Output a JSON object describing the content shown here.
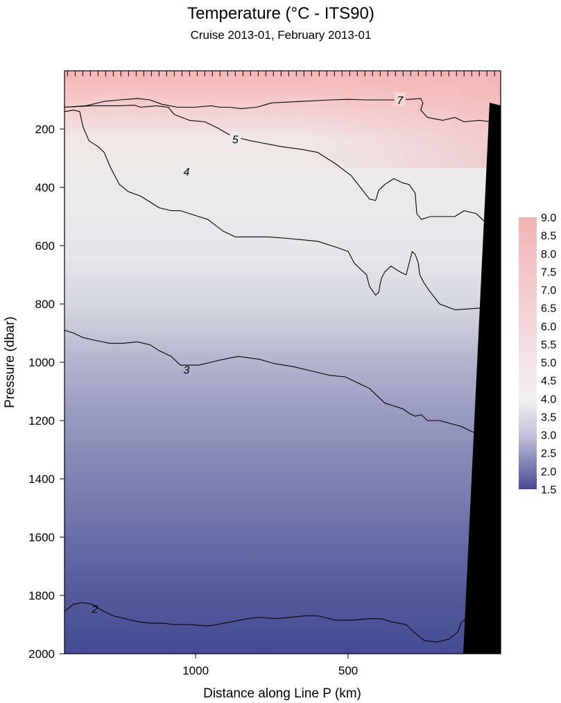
{
  "chart_data": {
    "type": "heatmap",
    "title": "Temperature  (°C - ITS90)",
    "subtitle": "Cruise 2013-01,  February 2013-01",
    "xlabel": "Distance along Line P  (km)",
    "ylabel": "Pressure  (dbar)",
    "x_axis": {
      "range": [
        1430,
        0
      ],
      "reversed": true,
      "ticks": [
        1000,
        500
      ],
      "tick_labels": [
        "1000",
        "500"
      ]
    },
    "y_axis": {
      "range": [
        0,
        2000
      ],
      "reversed": true,
      "ticks": [
        200,
        400,
        600,
        800,
        1000,
        1200,
        1400,
        1600,
        1800,
        2000
      ],
      "tick_labels": [
        "200",
        "400",
        "600",
        "800",
        "1000",
        "1200",
        "1400",
        "1600",
        "1800",
        "2000"
      ]
    },
    "station_ticks_km": [
      1420,
      1395,
      1370,
      1345,
      1320,
      1295,
      1270,
      1245,
      1220,
      1195,
      1170,
      1145,
      1120,
      1095,
      1070,
      1045,
      1020,
      995,
      970,
      945,
      920,
      895,
      870,
      845,
      820,
      795,
      770,
      745,
      720,
      695,
      670,
      645,
      620,
      595,
      570,
      545,
      520,
      495,
      470,
      445,
      420,
      395,
      370,
      345,
      320,
      295,
      270,
      245,
      220,
      195,
      170,
      145,
      120,
      95,
      70,
      45,
      20
    ],
    "colorbar": {
      "range": [
        1.5,
        9.0
      ],
      "labels": [
        "9.0",
        "8.5",
        "8.0",
        "7.5",
        "7.0",
        "6.5",
        "6.0",
        "5.5",
        "5.0",
        "4.5",
        "4.0",
        "3.5",
        "3.0",
        "2.5",
        "2.0",
        "1.5"
      ],
      "colors": {
        "low": "#454b93",
        "mid": "#f0f0f0",
        "high": "#f0b3b5"
      },
      "mid_value": 4.0
    },
    "contours": [
      {
        "level": 7,
        "label": "7",
        "label_at": [
          330,
          100
        ],
        "points": [
          [
            1430,
            125
          ],
          [
            1360,
            120
          ],
          [
            1300,
            105
          ],
          [
            1250,
            100
          ],
          [
            1190,
            95
          ],
          [
            1150,
            100
          ],
          [
            1110,
            115
          ],
          [
            1060,
            125
          ],
          [
            1000,
            125
          ],
          [
            950,
            120
          ],
          [
            920,
            125
          ],
          [
            890,
            125
          ],
          [
            850,
            130
          ],
          [
            800,
            125
          ],
          [
            750,
            110
          ],
          [
            650,
            105
          ],
          [
            560,
            100
          ],
          [
            500,
            98
          ],
          [
            440,
            100
          ],
          [
            360,
            100
          ],
          [
            300,
            98
          ],
          [
            262,
            95
          ],
          [
            255,
            110
          ],
          [
            262,
            135
          ],
          [
            240,
            160
          ],
          [
            190,
            170
          ],
          [
            150,
            160
          ],
          [
            120,
            175
          ],
          [
            70,
            170
          ],
          [
            30,
            175
          ],
          [
            0,
            205
          ]
        ]
      },
      {
        "level": 5,
        "label": "5",
        "label_at": [
          870,
          235
        ],
        "points": [
          [
            1430,
            125
          ],
          [
            1340,
            120
          ],
          [
            1300,
            120
          ],
          [
            1250,
            120
          ],
          [
            1200,
            118
          ],
          [
            1180,
            125
          ],
          [
            1130,
            120
          ],
          [
            1090,
            125
          ],
          [
            1070,
            150
          ],
          [
            1020,
            170
          ],
          [
            970,
            175
          ],
          [
            930,
            195
          ],
          [
            880,
            225
          ],
          [
            820,
            240
          ],
          [
            720,
            260
          ],
          [
            650,
            270
          ],
          [
            600,
            280
          ],
          [
            540,
            320
          ],
          [
            490,
            360
          ],
          [
            460,
            400
          ],
          [
            430,
            440
          ],
          [
            410,
            445
          ],
          [
            400,
            410
          ],
          [
            380,
            390
          ],
          [
            350,
            370
          ],
          [
            320,
            385
          ],
          [
            300,
            390
          ],
          [
            280,
            420
          ],
          [
            275,
            490
          ],
          [
            260,
            510
          ],
          [
            230,
            500
          ],
          [
            150,
            500
          ],
          [
            120,
            480
          ],
          [
            80,
            490
          ],
          [
            60,
            510
          ],
          [
            30,
            540
          ],
          [
            0,
            560
          ]
        ]
      },
      {
        "level": 4,
        "label": "4",
        "label_at": [
          1030,
          345
        ],
        "points": [
          [
            1430,
            140
          ],
          [
            1400,
            135
          ],
          [
            1380,
            140
          ],
          [
            1370,
            190
          ],
          [
            1350,
            240
          ],
          [
            1320,
            260
          ],
          [
            1300,
            280
          ],
          [
            1280,
            330
          ],
          [
            1250,
            390
          ],
          [
            1220,
            415
          ],
          [
            1180,
            430
          ],
          [
            1150,
            450
          ],
          [
            1120,
            470
          ],
          [
            1080,
            480
          ],
          [
            1050,
            480
          ],
          [
            990,
            500
          ],
          [
            960,
            510
          ],
          [
            910,
            550
          ],
          [
            870,
            570
          ],
          [
            760,
            570
          ],
          [
            700,
            575
          ],
          [
            650,
            580
          ],
          [
            600,
            585
          ],
          [
            540,
            605
          ],
          [
            500,
            620
          ],
          [
            480,
            660
          ],
          [
            460,
            680
          ],
          [
            440,
            700
          ],
          [
            430,
            740
          ],
          [
            410,
            770
          ],
          [
            400,
            760
          ],
          [
            395,
            730
          ],
          [
            390,
            710
          ],
          [
            380,
            690
          ],
          [
            360,
            670
          ],
          [
            330,
            690
          ],
          [
            310,
            700
          ],
          [
            290,
            620
          ],
          [
            280,
            630
          ],
          [
            270,
            660
          ],
          [
            265,
            700
          ],
          [
            250,
            730
          ],
          [
            230,
            760
          ],
          [
            200,
            800
          ],
          [
            150,
            820
          ],
          [
            80,
            815
          ],
          [
            30,
            810
          ],
          [
            0,
            820
          ]
        ]
      },
      {
        "level": 3,
        "label": "3",
        "label_at": [
          1030,
          1025
        ],
        "points": [
          [
            1430,
            890
          ],
          [
            1400,
            900
          ],
          [
            1370,
            915
          ],
          [
            1330,
            925
          ],
          [
            1280,
            935
          ],
          [
            1240,
            935
          ],
          [
            1190,
            930
          ],
          [
            1150,
            940
          ],
          [
            1120,
            960
          ],
          [
            1080,
            980
          ],
          [
            1050,
            1010
          ],
          [
            990,
            1010
          ],
          [
            950,
            1000
          ],
          [
            910,
            990
          ],
          [
            860,
            980
          ],
          [
            790,
            990
          ],
          [
            740,
            1005
          ],
          [
            680,
            1015
          ],
          [
            620,
            1030
          ],
          [
            560,
            1045
          ],
          [
            510,
            1050
          ],
          [
            470,
            1070
          ],
          [
            430,
            1090
          ],
          [
            410,
            1110
          ],
          [
            380,
            1140
          ],
          [
            350,
            1150
          ],
          [
            320,
            1160
          ],
          [
            300,
            1175
          ],
          [
            280,
            1185
          ],
          [
            260,
            1180
          ],
          [
            240,
            1200
          ],
          [
            200,
            1200
          ],
          [
            130,
            1220
          ],
          [
            90,
            1240
          ],
          [
            30,
            1245
          ],
          [
            0,
            1225
          ]
        ]
      },
      {
        "level": 2,
        "label": "2",
        "label_at": [
          1330,
          1845
        ],
        "points": [
          [
            1430,
            1855
          ],
          [
            1400,
            1830
          ],
          [
            1370,
            1825
          ],
          [
            1340,
            1830
          ],
          [
            1310,
            1850
          ],
          [
            1270,
            1870
          ],
          [
            1230,
            1880
          ],
          [
            1190,
            1890
          ],
          [
            1150,
            1895
          ],
          [
            1110,
            1895
          ],
          [
            1070,
            1900
          ],
          [
            1020,
            1900
          ],
          [
            960,
            1905
          ],
          [
            930,
            1900
          ],
          [
            880,
            1890
          ],
          [
            830,
            1880
          ],
          [
            790,
            1875
          ],
          [
            740,
            1880
          ],
          [
            690,
            1875
          ],
          [
            640,
            1870
          ],
          [
            600,
            1870
          ],
          [
            540,
            1885
          ],
          [
            490,
            1885
          ],
          [
            430,
            1880
          ],
          [
            390,
            1880
          ],
          [
            360,
            1890
          ],
          [
            310,
            1900
          ],
          [
            280,
            1930
          ],
          [
            250,
            1955
          ],
          [
            210,
            1960
          ],
          [
            170,
            1950
          ],
          [
            140,
            1925
          ],
          [
            130,
            1895
          ],
          [
            110,
            1875
          ],
          [
            90,
            1880
          ],
          [
            70,
            1900
          ],
          [
            50,
            1890
          ],
          [
            30,
            1905
          ],
          [
            20,
            1880
          ],
          [
            0,
            1875
          ]
        ]
      }
    ]
  }
}
